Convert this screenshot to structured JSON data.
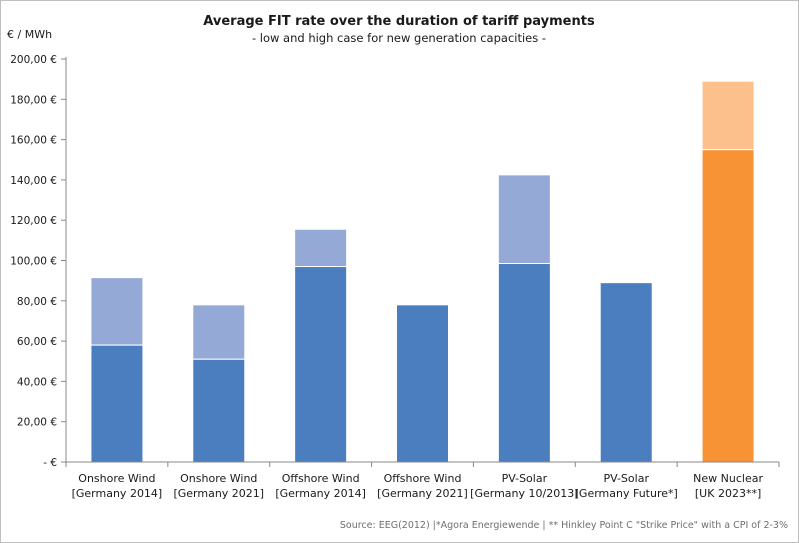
{
  "chart_data": {
    "type": "bar",
    "stacked": true,
    "title": "Average FIT rate over the duration of tariff payments",
    "subtitle": "- low and high case for new generation capacities -",
    "ylabel": "€ / MWh",
    "xlabel": "",
    "ylim": [
      0,
      200
    ],
    "yticks": [
      0,
      20,
      40,
      60,
      80,
      100,
      120,
      140,
      160,
      180,
      200
    ],
    "ytick_labels": [
      "-  €",
      "20,00 €",
      "40,00 €",
      "60,00 €",
      "80,00 €",
      "100,00 €",
      "120,00 €",
      "140,00 €",
      "160,00 €",
      "180,00 €",
      "200,00 €"
    ],
    "grid": false,
    "categories": [
      [
        "Onshore Wind",
        "[Germany 2014]"
      ],
      [
        "Onshore Wind",
        "[Germany 2021]"
      ],
      [
        "Offshore Wind",
        "[Germany 2014]"
      ],
      [
        "Offshore Wind",
        "[Germany 2021]"
      ],
      [
        "PV-Solar",
        "[Germany 10/2013]"
      ],
      [
        "PV-Solar",
        "[Germany Future*]"
      ],
      [
        "New Nuclear",
        "[UK 2023**]"
      ]
    ],
    "low": [
      58,
      51,
      97,
      78,
      98.5,
      89,
      155
    ],
    "high": [
      91.5,
      78,
      115.5,
      78,
      142.5,
      89,
      189
    ],
    "colors": {
      "low": [
        "#4a7ebf",
        "#4a7ebf",
        "#4a7ebf",
        "#4a7ebf",
        "#4a7ebf",
        "#4a7ebf",
        "#f79334"
      ],
      "high": [
        "#94a9d6",
        "#94a9d6",
        "#94a9d6",
        "#94a9d6",
        "#94a9d6",
        "#94a9d6",
        "#fbc08b"
      ]
    },
    "source": "Source:  EEG(2012) |*Agora Energiewende | ** Hinkley Point C \"Strike Price\" with a CPI of 2-3%"
  }
}
